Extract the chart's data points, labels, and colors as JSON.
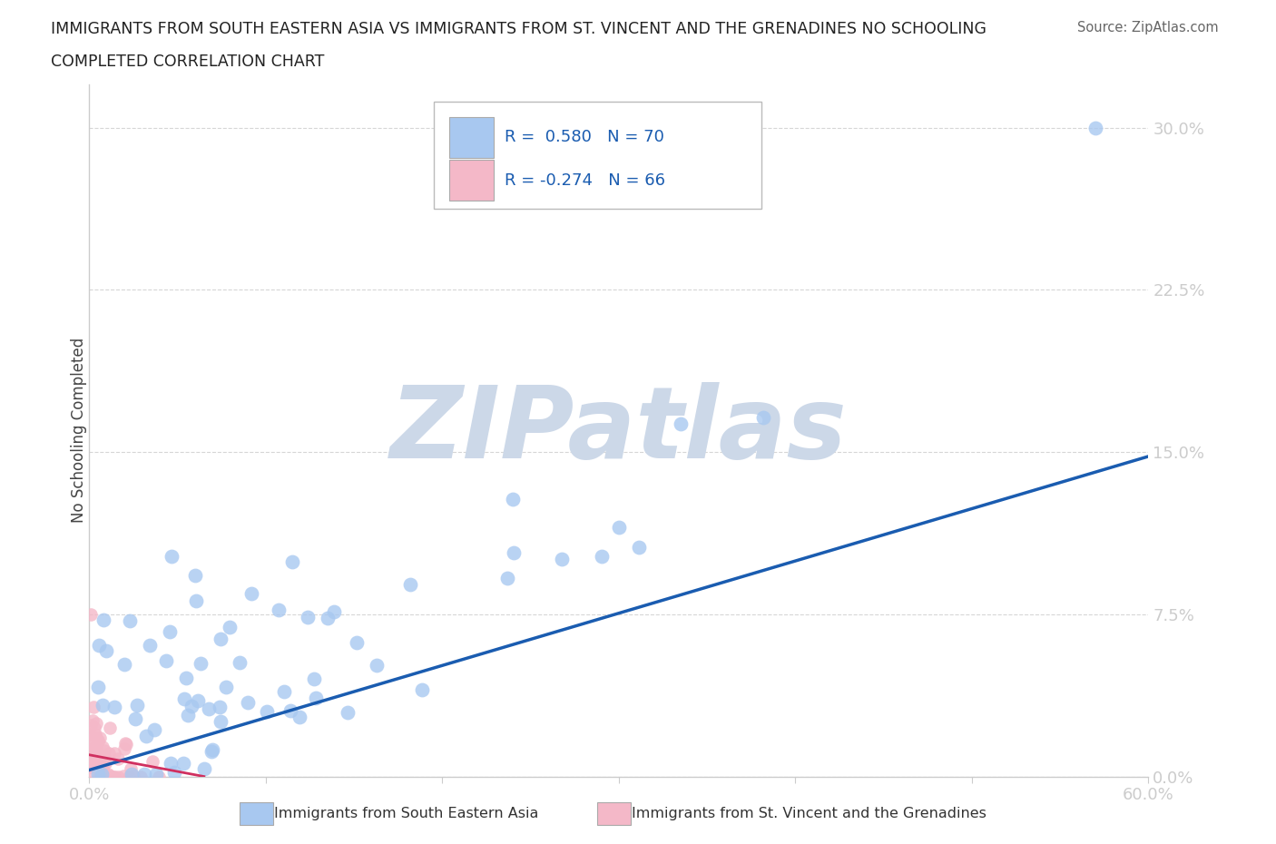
{
  "title_line1": "IMMIGRANTS FROM SOUTH EASTERN ASIA VS IMMIGRANTS FROM ST. VINCENT AND THE GRENADINES NO SCHOOLING",
  "title_line2": "COMPLETED CORRELATION CHART",
  "source_text": "Source: ZipAtlas.com",
  "ylabel": "No Schooling Completed",
  "xlim": [
    0.0,
    0.6
  ],
  "ylim": [
    0.0,
    0.32
  ],
  "xticks": [
    0.0,
    0.1,
    0.2,
    0.3,
    0.4,
    0.5,
    0.6
  ],
  "ytick_labels": [
    "0.0%",
    "7.5%",
    "15.0%",
    "22.5%",
    "30.0%"
  ],
  "yticks": [
    0.0,
    0.075,
    0.15,
    0.225,
    0.3
  ],
  "blue_R": 0.58,
  "blue_N": 70,
  "pink_R": -0.274,
  "pink_N": 66,
  "blue_color": "#a8c8f0",
  "pink_color": "#f4b8c8",
  "blue_line_color": "#1a5cb0",
  "pink_line_color": "#d03060",
  "legend_R_color": "#1a5cb0",
  "tick_color": "#4488cc",
  "background_color": "#ffffff",
  "watermark_text": "ZIPatlas",
  "watermark_color": "#ccd8e8",
  "grid_color": "#cccccc",
  "spine_color": "#cccccc",
  "blue_line_x0": 0.0,
  "blue_line_y0": 0.003,
  "blue_line_x1": 0.6,
  "blue_line_y1": 0.148,
  "pink_line_x0": 0.0,
  "pink_line_y0": 0.01,
  "pink_line_x1": 0.065,
  "pink_line_y1": 0.0
}
